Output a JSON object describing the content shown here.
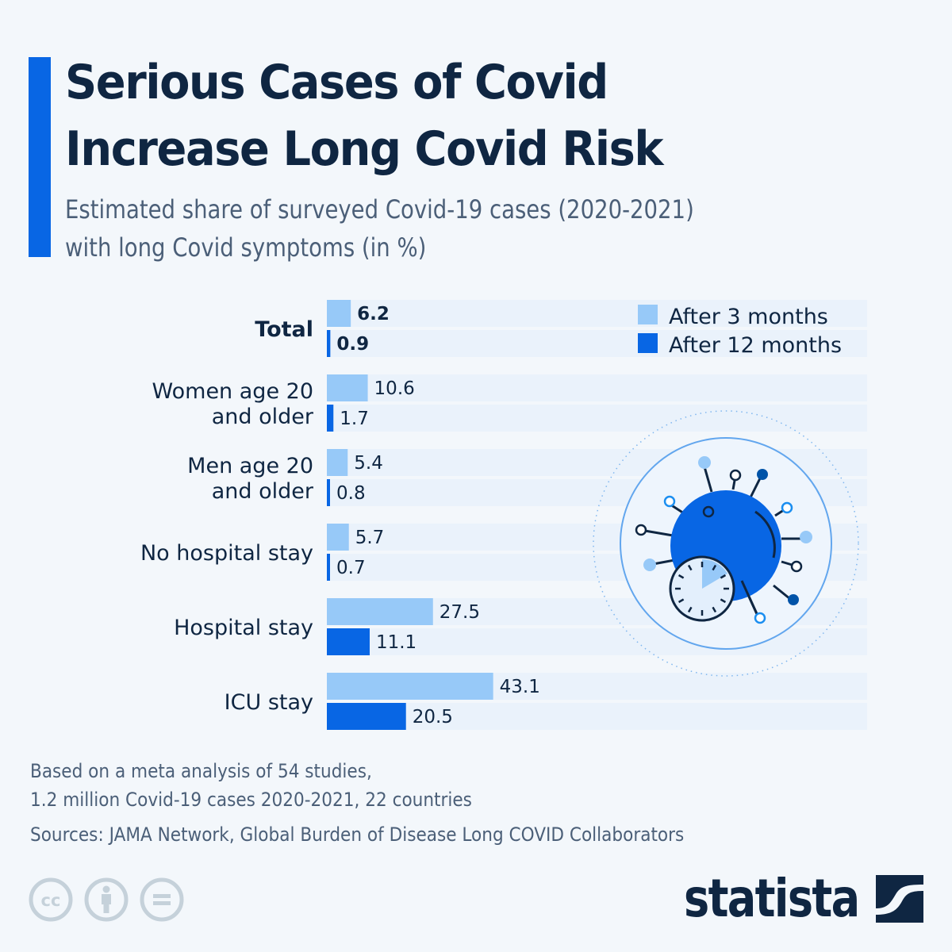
{
  "header": {
    "title_line1": "Serious Cases of Covid",
    "title_line2": "Increase Long Covid Risk",
    "subtitle_line1": "Estimated share of surveyed Covid-19 cases (2020-2021)",
    "subtitle_line2": "with long Covid symptoms (in %)"
  },
  "colors": {
    "accent": "#0866e4",
    "after_3_months": "#97c9f8",
    "after_12_months": "#0866e4",
    "track": "#eaf2fb",
    "text_dark": "#0f2642",
    "text_muted": "#4b5f78",
    "icon_gray": "#c5d1da"
  },
  "chart_data": {
    "type": "bar",
    "orientation": "horizontal",
    "title": "Serious Cases of Covid Increase Long Covid Risk",
    "subtitle": "Estimated share of surveyed Covid-19 cases (2020-2021) with long Covid symptoms (in %)",
    "xlabel": "",
    "ylabel": "",
    "unit": "%",
    "categories": [
      [
        "Total"
      ],
      [
        "Women age 20",
        "and older"
      ],
      [
        "Men age 20",
        "and older"
      ],
      [
        "No hospital stay"
      ],
      [
        "Hospital stay"
      ],
      [
        "ICU stay"
      ]
    ],
    "category_names": [
      "Total",
      "Women age 20 and older",
      "Men age 20 and older",
      "No hospital stay",
      "Hospital stay",
      "ICU stay"
    ],
    "highlight_category": "Total",
    "series": [
      {
        "name": "After 3 months",
        "color": "#97c9f8",
        "values": [
          6.2,
          10.6,
          5.4,
          5.7,
          27.5,
          43.1
        ],
        "labels": [
          "6.2",
          "10.6",
          "5.4",
          "5.7",
          "27.5",
          "43.1"
        ]
      },
      {
        "name": "After 12 months",
        "color": "#0866e4",
        "values": [
          0.9,
          1.7,
          0.8,
          0.7,
          11.1,
          20.5
        ],
        "labels": [
          "0.9",
          "1.7",
          "0.8",
          "0.7",
          "11.1",
          "20.5"
        ]
      }
    ],
    "xlim": [
      0,
      140
    ],
    "grid": false,
    "legend": {
      "position": "top-right",
      "entries": [
        "After 3 months",
        "After 12 months"
      ]
    }
  },
  "footer": {
    "note_line1": "Based on a meta analysis of 54 studies,",
    "note_line2": "1.2 million Covid-19 cases 2020-2021, 22 countries",
    "sources": "Sources: JAMA Network, Global Burden of Disease Long COVID Collaborators",
    "license_icons": [
      "creative-commons-icon",
      "attribution-icon",
      "no-derivatives-icon"
    ],
    "logo_text": "statista"
  }
}
